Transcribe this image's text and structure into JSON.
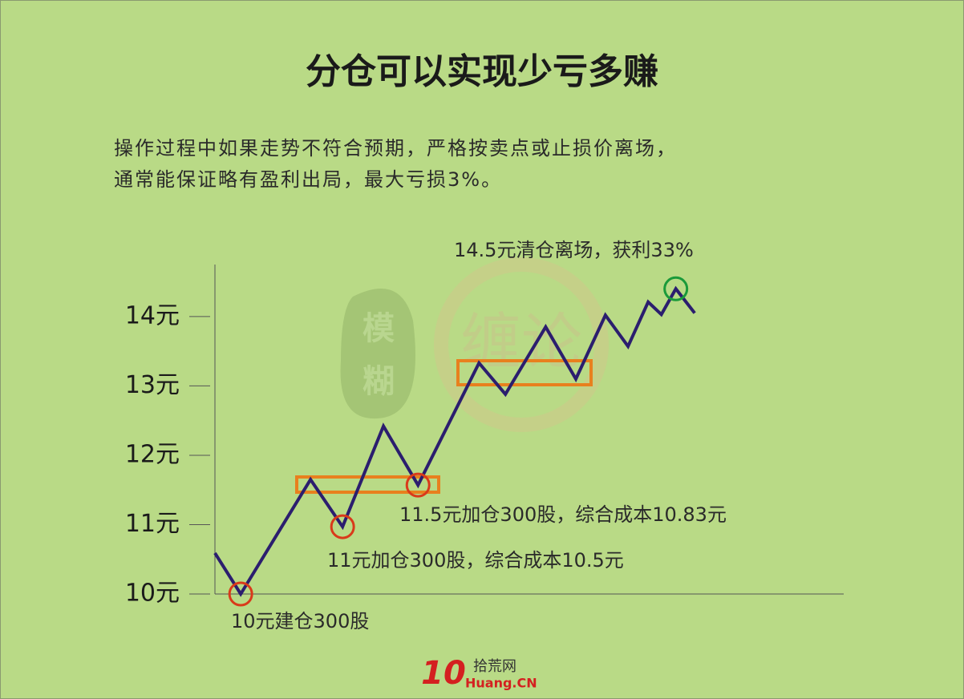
{
  "chart_data": {
    "type": "line",
    "title": "分仓可以实现少亏多赚",
    "subtitle": [
      "操作过程中如果走势不符合预期，严格按卖点或止损价离场，",
      "通常能保证略有盈利出局，最大亏损3%。"
    ],
    "x": [
      0,
      4.1,
      15.2,
      20.3,
      26.8,
      32.3,
      42,
      46.2,
      52.6,
      57.4,
      62.1,
      65.7,
      68.9,
      71,
      73.3,
      76.3
    ],
    "xlim": [
      0,
      100
    ],
    "series": [
      {
        "color": "#2b1e6e",
        "values": [
          10.59,
          10,
          11.65,
          10.97,
          12.42,
          11.57,
          13.33,
          12.88,
          13.85,
          13.1,
          14.02,
          13.57,
          14.21,
          14.03,
          14.4,
          14.05
        ]
      }
    ],
    "ylim": [
      10,
      14.75
    ],
    "yticks": [
      {
        "value": 10,
        "label": "10元"
      },
      {
        "value": 11,
        "label": "11元"
      },
      {
        "value": 12,
        "label": "12元"
      },
      {
        "value": 13,
        "label": "13元"
      },
      {
        "value": 14,
        "label": "14元"
      }
    ],
    "annotations": [
      "10元建仓300股",
      "11元加仓300股，综合成本10.5元",
      "11.5元加仓300股，综合成本10.83元",
      "14.5元清仓离场，获利33%"
    ],
    "watermarks": [
      "模",
      "糊",
      "缠论"
    ],
    "logo": {
      "number": "10",
      "name": "拾荒网",
      "site": "Huang.CN"
    }
  }
}
